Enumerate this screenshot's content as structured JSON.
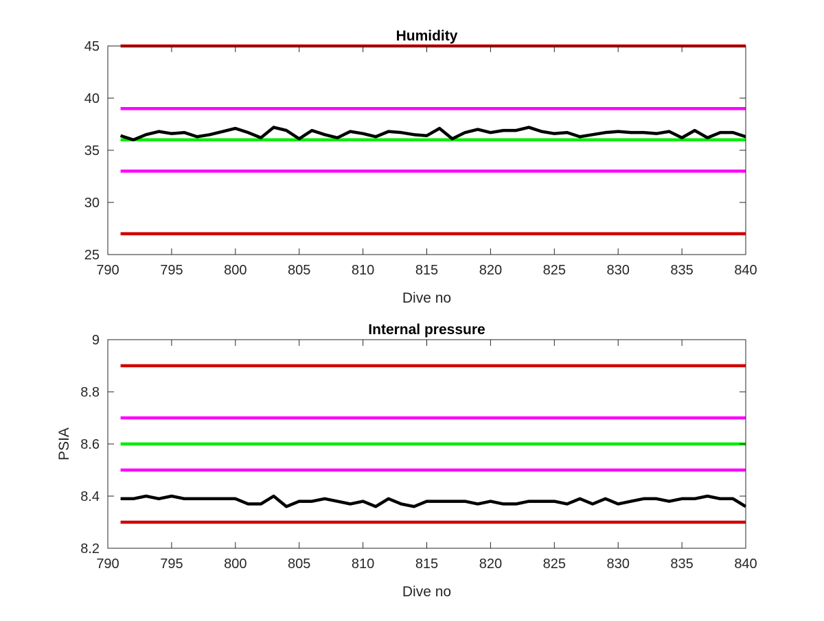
{
  "chart_data": [
    {
      "type": "line",
      "title": "Humidity",
      "xlabel": "Dive no",
      "ylabel": "",
      "xlim": [
        790,
        840
      ],
      "ylim": [
        25,
        45
      ],
      "xticks": [
        790,
        795,
        800,
        805,
        810,
        815,
        820,
        825,
        830,
        835,
        840
      ],
      "yticks": [
        25,
        30,
        35,
        40,
        45
      ],
      "grid": false,
      "legend": "none",
      "series": [
        {
          "color": "#000000",
          "x": [
            791,
            792,
            793,
            794,
            795,
            796,
            797,
            798,
            799,
            800,
            801,
            802,
            803,
            804,
            805,
            806,
            807,
            808,
            809,
            810,
            811,
            812,
            813,
            814,
            815,
            816,
            817,
            818,
            819,
            820,
            821,
            822,
            823,
            824,
            825,
            826,
            827,
            828,
            829,
            830,
            831,
            832,
            833,
            834,
            835,
            836,
            837,
            838,
            839,
            840
          ],
          "y": [
            36.4,
            36.0,
            36.5,
            36.8,
            36.6,
            36.7,
            36.3,
            36.5,
            36.8,
            37.1,
            36.7,
            36.2,
            37.2,
            36.9,
            36.1,
            36.9,
            36.5,
            36.2,
            36.8,
            36.6,
            36.3,
            36.8,
            36.7,
            36.5,
            36.4,
            37.1,
            36.1,
            36.7,
            37.0,
            36.7,
            36.9,
            36.9,
            37.2,
            36.8,
            36.6,
            36.7,
            36.3,
            36.5,
            36.7,
            36.8,
            36.7,
            36.7,
            36.6,
            36.8,
            36.2,
            36.9,
            36.2,
            36.7,
            36.7,
            36.3
          ]
        },
        {
          "color": "#d00000",
          "x": [
            791,
            840
          ],
          "y": [
            45,
            45
          ]
        },
        {
          "color": "#ff00ff",
          "x": [
            791,
            840
          ],
          "y": [
            39,
            39
          ]
        },
        {
          "color": "#00ee00",
          "x": [
            791,
            840
          ],
          "y": [
            36,
            36
          ]
        },
        {
          "color": "#ff00ff",
          "x": [
            791,
            840
          ],
          "y": [
            33,
            33
          ]
        },
        {
          "color": "#d00000",
          "x": [
            791,
            840
          ],
          "y": [
            27,
            27
          ]
        }
      ]
    },
    {
      "type": "line",
      "title": "Internal pressure",
      "xlabel": "Dive no",
      "ylabel": "PSIA",
      "xlim": [
        790,
        840
      ],
      "ylim": [
        8.2,
        9
      ],
      "xticks": [
        790,
        795,
        800,
        805,
        810,
        815,
        820,
        825,
        830,
        835,
        840
      ],
      "yticks": [
        8.2,
        8.4,
        8.6,
        8.8,
        9
      ],
      "grid": false,
      "legend": "none",
      "series": [
        {
          "color": "#000000",
          "x": [
            791,
            792,
            793,
            794,
            795,
            796,
            797,
            798,
            799,
            800,
            801,
            802,
            803,
            804,
            805,
            806,
            807,
            808,
            809,
            810,
            811,
            812,
            813,
            814,
            815,
            816,
            817,
            818,
            819,
            820,
            821,
            822,
            823,
            824,
            825,
            826,
            827,
            828,
            829,
            830,
            831,
            832,
            833,
            834,
            835,
            836,
            837,
            838,
            839,
            840
          ],
          "y": [
            8.39,
            8.39,
            8.4,
            8.39,
            8.4,
            8.39,
            8.39,
            8.39,
            8.39,
            8.39,
            8.37,
            8.37,
            8.4,
            8.36,
            8.38,
            8.38,
            8.39,
            8.38,
            8.37,
            8.38,
            8.36,
            8.39,
            8.37,
            8.36,
            8.38,
            8.38,
            8.38,
            8.38,
            8.37,
            8.38,
            8.37,
            8.37,
            8.38,
            8.38,
            8.38,
            8.37,
            8.39,
            8.37,
            8.39,
            8.37,
            8.38,
            8.39,
            8.39,
            8.38,
            8.39,
            8.39,
            8.4,
            8.39,
            8.39,
            8.36
          ]
        },
        {
          "color": "#d00000",
          "x": [
            791,
            840
          ],
          "y": [
            8.9,
            8.9
          ]
        },
        {
          "color": "#ff00ff",
          "x": [
            791,
            840
          ],
          "y": [
            8.7,
            8.7
          ]
        },
        {
          "color": "#00ee00",
          "x": [
            791,
            840
          ],
          "y": [
            8.6,
            8.6
          ]
        },
        {
          "color": "#ff00ff",
          "x": [
            791,
            840
          ],
          "y": [
            8.5,
            8.5
          ]
        },
        {
          "color": "#d00000",
          "x": [
            791,
            840
          ],
          "y": [
            8.3,
            8.3
          ]
        }
      ]
    }
  ]
}
